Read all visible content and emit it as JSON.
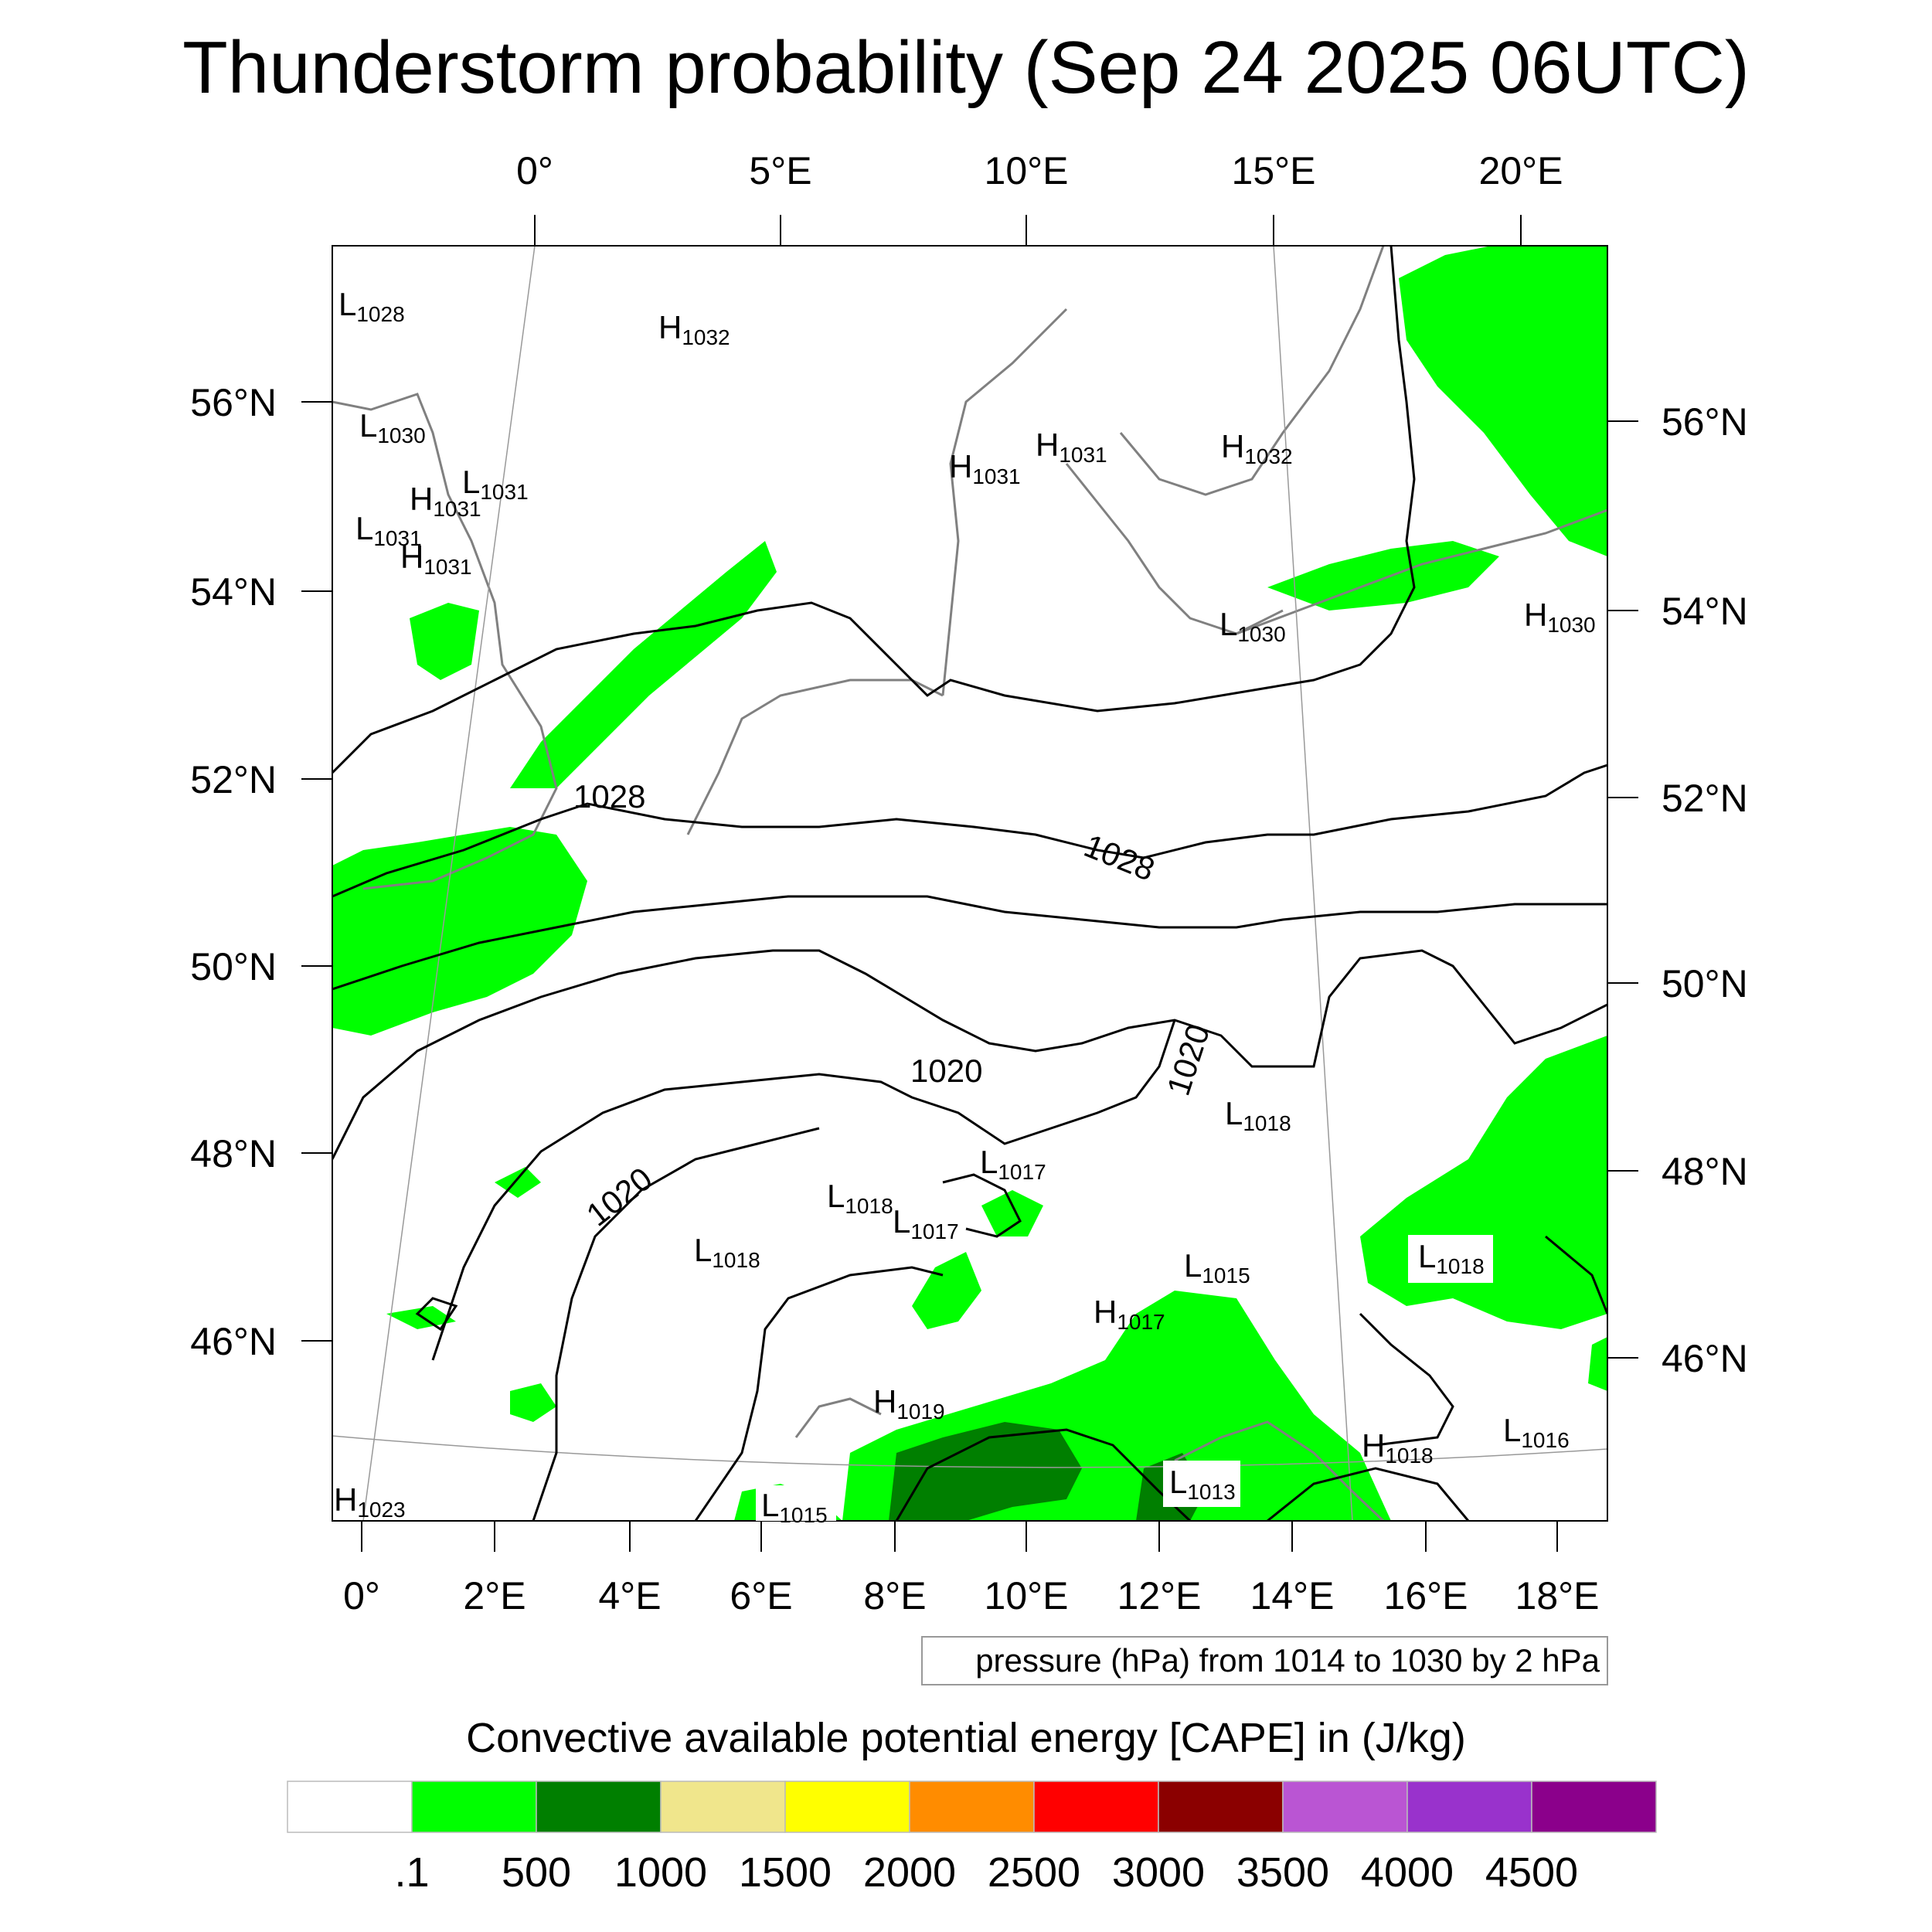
{
  "title": "Thunderstorm probability (Sep 24 2025 06UTC)",
  "top_lon_labels": [
    "0°",
    "5°E",
    "10°E",
    "15°E",
    "20°E"
  ],
  "bottom_lon_labels": [
    "0°",
    "2°E",
    "4°E",
    "6°E",
    "8°E",
    "10°E",
    "12°E",
    "14°E",
    "16°E",
    "18°E"
  ],
  "left_lat_labels": [
    "56°N",
    "54°N",
    "52°N",
    "50°N",
    "48°N",
    "46°N"
  ],
  "right_lat_labels": [
    "56°N",
    "54°N",
    "52°N",
    "50°N",
    "48°N",
    "46°N"
  ],
  "pressure_info": "pressure (hPa) from 1014 to 1030 by 2 hPa",
  "isobar_labels": [
    "1028",
    "1028",
    "1020",
    "1020",
    "1020"
  ],
  "pressure_centers": [
    {
      "type": "L",
      "value": "1028"
    },
    {
      "type": "H",
      "value": "1032"
    },
    {
      "type": "L",
      "value": "1030"
    },
    {
      "type": "L",
      "value": "1031"
    },
    {
      "type": "H",
      "value": "1031"
    },
    {
      "type": "L",
      "value": "1031"
    },
    {
      "type": "H",
      "value": "1031"
    },
    {
      "type": "H",
      "value": "1031"
    },
    {
      "type": "H",
      "value": "1031"
    },
    {
      "type": "H",
      "value": "1032"
    },
    {
      "type": "L",
      "value": "1030"
    },
    {
      "type": "H",
      "value": "1030"
    },
    {
      "type": "L",
      "value": "1018"
    },
    {
      "type": "L",
      "value": "1017"
    },
    {
      "type": "L",
      "value": "1018"
    },
    {
      "type": "L",
      "value": "1017"
    },
    {
      "type": "L",
      "value": "1018"
    },
    {
      "type": "L",
      "value": "1015"
    },
    {
      "type": "H",
      "value": "1017"
    },
    {
      "type": "L",
      "value": "1018"
    },
    {
      "type": "H",
      "value": "1019"
    },
    {
      "type": "L",
      "value": "1016"
    },
    {
      "type": "H",
      "value": "1018"
    },
    {
      "type": "L",
      "value": "1013"
    },
    {
      "type": "L",
      "value": "1015"
    },
    {
      "type": "H",
      "value": "1023"
    }
  ],
  "colorbar": {
    "title": "Convective available potential energy [CAPE] in (J/kg)",
    "colors": [
      "#ffffff",
      "#00ff00",
      "#007f00",
      "#f0e68c",
      "#ffff00",
      "#ff8c00",
      "#ff0000",
      "#8b0000",
      "#ba55d3",
      "#9932cc",
      "#8b008b"
    ],
    "labels": [
      ".1",
      "500",
      "1000",
      "1500",
      "2000",
      "2500",
      "3000",
      "3500",
      "4000",
      "4500"
    ]
  },
  "colors": {
    "cape_light": "#00ff00",
    "cape_dark": "#007f00",
    "coast": "#808080",
    "isobar": "#000000"
  }
}
